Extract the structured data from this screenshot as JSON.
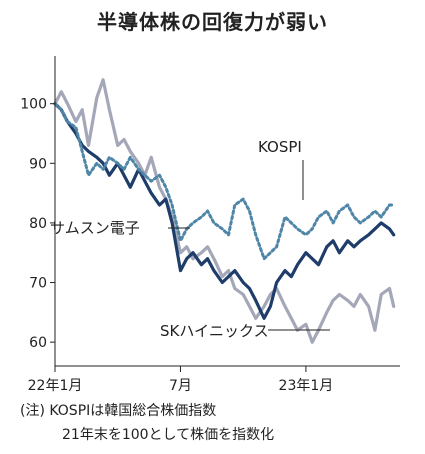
{
  "chart_data": {
    "type": "line",
    "title": "半導体株の回復力が弱い",
    "yticks": [
      60,
      70,
      80,
      90,
      100
    ],
    "ylim": [
      56,
      108
    ],
    "xlim": [
      0,
      16.5
    ],
    "xticks": [
      {
        "x": 0,
        "label": "22年1月"
      },
      {
        "x": 6,
        "label": "7月"
      },
      {
        "x": 12,
        "label": "23年1月"
      }
    ],
    "grid": false,
    "series": [
      {
        "name": "KOSPI",
        "color": "#4f86a8",
        "style": "dotted",
        "points": [
          [
            0,
            100
          ],
          [
            0.3,
            99
          ],
          [
            0.6,
            97
          ],
          [
            1.0,
            96
          ],
          [
            1.3,
            92
          ],
          [
            1.6,
            88
          ],
          [
            2.0,
            90
          ],
          [
            2.3,
            89
          ],
          [
            2.6,
            91
          ],
          [
            3.0,
            90
          ],
          [
            3.3,
            89
          ],
          [
            3.6,
            91
          ],
          [
            4.0,
            89
          ],
          [
            4.3,
            88
          ],
          [
            4.6,
            87
          ],
          [
            5.0,
            88
          ],
          [
            5.3,
            86
          ],
          [
            5.6,
            83
          ],
          [
            6.0,
            77
          ],
          [
            6.3,
            79
          ],
          [
            6.6,
            80
          ],
          [
            7.0,
            81
          ],
          [
            7.3,
            82
          ],
          [
            7.6,
            80
          ],
          [
            8.0,
            79
          ],
          [
            8.3,
            78
          ],
          [
            8.6,
            83
          ],
          [
            9.0,
            84
          ],
          [
            9.3,
            82
          ],
          [
            9.6,
            78
          ],
          [
            10.0,
            74
          ],
          [
            10.3,
            75
          ],
          [
            10.6,
            76
          ],
          [
            11.0,
            81
          ],
          [
            11.3,
            80
          ],
          [
            11.6,
            79
          ],
          [
            12.0,
            78
          ],
          [
            12.3,
            79
          ],
          [
            12.6,
            81
          ],
          [
            13.0,
            82
          ],
          [
            13.3,
            80
          ],
          [
            13.6,
            82
          ],
          [
            14.0,
            83
          ],
          [
            14.3,
            81
          ],
          [
            14.6,
            80
          ],
          [
            15.0,
            81
          ],
          [
            15.3,
            82
          ],
          [
            15.6,
            81
          ],
          [
            16.0,
            83
          ],
          [
            16.2,
            83
          ]
        ]
      },
      {
        "name": "サムスン電子",
        "color": "#1e3d6b",
        "style": "solid",
        "points": [
          [
            0,
            100
          ],
          [
            0.3,
            99
          ],
          [
            0.6,
            97
          ],
          [
            1.0,
            95
          ],
          [
            1.3,
            93
          ],
          [
            1.6,
            92
          ],
          [
            2.0,
            91
          ],
          [
            2.3,
            90
          ],
          [
            2.6,
            88
          ],
          [
            3.0,
            90
          ],
          [
            3.3,
            88
          ],
          [
            3.6,
            86
          ],
          [
            4.0,
            89
          ],
          [
            4.3,
            87
          ],
          [
            4.6,
            85
          ],
          [
            5.0,
            83
          ],
          [
            5.3,
            84
          ],
          [
            5.6,
            80
          ],
          [
            6.0,
            72
          ],
          [
            6.3,
            74
          ],
          [
            6.6,
            75
          ],
          [
            7.0,
            73
          ],
          [
            7.3,
            74
          ],
          [
            7.6,
            72
          ],
          [
            8.0,
            70
          ],
          [
            8.3,
            71
          ],
          [
            8.6,
            72
          ],
          [
            9.0,
            70
          ],
          [
            9.3,
            69
          ],
          [
            9.6,
            67
          ],
          [
            10.0,
            64
          ],
          [
            10.3,
            66
          ],
          [
            10.6,
            70
          ],
          [
            11.0,
            72
          ],
          [
            11.3,
            71
          ],
          [
            11.6,
            73
          ],
          [
            12.0,
            75
          ],
          [
            12.3,
            74
          ],
          [
            12.6,
            73
          ],
          [
            13.0,
            76
          ],
          [
            13.3,
            77
          ],
          [
            13.6,
            75
          ],
          [
            14.0,
            77
          ],
          [
            14.3,
            76
          ],
          [
            14.6,
            77
          ],
          [
            15.0,
            78
          ],
          [
            15.3,
            79
          ],
          [
            15.6,
            80
          ],
          [
            16.0,
            79
          ],
          [
            16.2,
            78
          ]
        ]
      },
      {
        "name": "SKハイニックス",
        "color": "#a4a7b8",
        "style": "solid",
        "points": [
          [
            0,
            100
          ],
          [
            0.3,
            102
          ],
          [
            0.6,
            100
          ],
          [
            1.0,
            97
          ],
          [
            1.3,
            99
          ],
          [
            1.6,
            93
          ],
          [
            2.0,
            101
          ],
          [
            2.3,
            104
          ],
          [
            2.6,
            99
          ],
          [
            3.0,
            93
          ],
          [
            3.3,
            94
          ],
          [
            3.6,
            92
          ],
          [
            4.0,
            90
          ],
          [
            4.3,
            88
          ],
          [
            4.6,
            91
          ],
          [
            5.0,
            86
          ],
          [
            5.3,
            84
          ],
          [
            5.6,
            81
          ],
          [
            6.0,
            75
          ],
          [
            6.3,
            76
          ],
          [
            6.6,
            74
          ],
          [
            7.0,
            75
          ],
          [
            7.3,
            76
          ],
          [
            7.6,
            74
          ],
          [
            8.0,
            71
          ],
          [
            8.3,
            72
          ],
          [
            8.6,
            69
          ],
          [
            9.0,
            68
          ],
          [
            9.3,
            66
          ],
          [
            9.6,
            64
          ],
          [
            10.0,
            66
          ],
          [
            10.3,
            68
          ],
          [
            10.6,
            69
          ],
          [
            11.0,
            66
          ],
          [
            11.3,
            64
          ],
          [
            11.6,
            62
          ],
          [
            12.0,
            63
          ],
          [
            12.3,
            60
          ],
          [
            12.6,
            62
          ],
          [
            13.0,
            65
          ],
          [
            13.3,
            67
          ],
          [
            13.6,
            68
          ],
          [
            14.0,
            67
          ],
          [
            14.3,
            66
          ],
          [
            14.6,
            68
          ],
          [
            15.0,
            66
          ],
          [
            15.3,
            62
          ],
          [
            15.6,
            68
          ],
          [
            16.0,
            69
          ],
          [
            16.2,
            66
          ]
        ]
      }
    ],
    "series_labels": {
      "kospi": "KOSPI",
      "samsung": "サムスン電子",
      "skhynix": "SKハイニックス"
    }
  },
  "notes": {
    "line1": "(注) KOSPIは韓国総合株価指数",
    "line2": "21年末を100として株価を指数化"
  }
}
